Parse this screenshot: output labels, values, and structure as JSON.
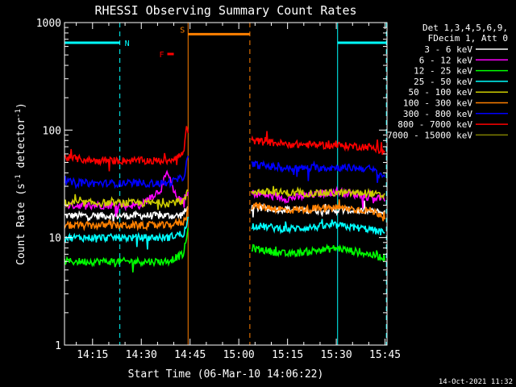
{
  "chart_data": {
    "type": "line",
    "title": "RHESSI Observing Summary Count Rates",
    "xlabel": "Start Time (06-Mar-10 14:06:22)",
    "ylabel": "Count Rate (s-1 detector-1)",
    "ylabel_parts": {
      "base": "Count Rate (s",
      "sup1": "-1",
      "mid": " detector",
      "sup2": "-1",
      "end": ")"
    },
    "x_units": "minutes after 14:00 UT",
    "xlim": [
      6.37,
      105.6
    ],
    "ylim": [
      1,
      1000
    ],
    "y_scale": "log",
    "x_ticks": [
      {
        "v": 15,
        "label": "14:15"
      },
      {
        "v": 30,
        "label": "14:30"
      },
      {
        "v": 45,
        "label": "14:45"
      },
      {
        "v": 60,
        "label": "15:00"
      },
      {
        "v": 75,
        "label": "15:15"
      },
      {
        "v": 90,
        "label": "15:30"
      },
      {
        "v": 105,
        "label": "15:45"
      }
    ],
    "y_ticks": [
      {
        "v": 1,
        "label": "1"
      },
      {
        "v": 10,
        "label": "10"
      },
      {
        "v": 100,
        "label": "100"
      },
      {
        "v": 1000,
        "label": "1000"
      }
    ],
    "legend_placement": "outside-right",
    "legend_header": [
      "Det 1,3,4,5,6,9,",
      "FDecim 1, Att 0"
    ],
    "series": [
      {
        "name": "3 - 6 keV",
        "color": "#ffffff",
        "x": [
          6.4,
          20,
          38,
          42,
          44,
          44.4,
          64,
          80,
          95,
          105
        ],
        "y": [
          16,
          16,
          16,
          16,
          18,
          19,
          19,
          18,
          18,
          17
        ]
      },
      {
        "name": "6 - 12 keV",
        "color": "#ff00ff",
        "x": [
          6.4,
          30,
          36,
          38,
          40,
          42,
          44,
          44.4,
          64,
          75,
          90,
          100,
          105
        ],
        "y": [
          20,
          20,
          28,
          40,
          26,
          22,
          24,
          26,
          26,
          23,
          27,
          24,
          23
        ]
      },
      {
        "name": "12 - 25 keV",
        "color": "#00ff00",
        "x": [
          6.4,
          38,
          43,
          44,
          44.4,
          64,
          75,
          90,
          100,
          105
        ],
        "y": [
          6,
          6,
          7,
          10,
          12,
          8,
          7,
          8,
          7,
          6.5
        ]
      },
      {
        "name": "25 - 50 keV",
        "color": "#00ffff",
        "x": [
          6.4,
          38,
          43,
          44,
          44.4,
          64,
          75,
          90,
          100,
          105
        ],
        "y": [
          10,
          10,
          11,
          13,
          15,
          13,
          12,
          13,
          12,
          11
        ]
      },
      {
        "name": "50 - 100 keV",
        "color": "#cccc00",
        "x": [
          6.4,
          38,
          43,
          44,
          44.4,
          64,
          75,
          90,
          100,
          105
        ],
        "y": [
          21,
          21,
          22,
          25,
          28,
          27,
          26,
          26,
          26,
          24
        ]
      },
      {
        "name": "100 - 300 keV",
        "color": "#ff8000",
        "x": [
          6.4,
          38,
          43,
          44,
          44.4,
          64,
          75,
          90,
          100,
          105
        ],
        "y": [
          13,
          13,
          14,
          16,
          20,
          20,
          18,
          19,
          18,
          16
        ]
      },
      {
        "name": "300 - 800 keV",
        "color": "#0000ff",
        "x": [
          6.4,
          15,
          38,
          43,
          44,
          44.4,
          64,
          75,
          90,
          100,
          105
        ],
        "y": [
          33,
          32,
          32,
          36,
          50,
          55,
          48,
          44,
          45,
          44,
          37
        ]
      },
      {
        "name": "800 - 7000 keV",
        "color": "#ff0000",
        "x": [
          6.4,
          15,
          38,
          43,
          44,
          44.4,
          64,
          75,
          90,
          100,
          105
        ],
        "y": [
          56,
          52,
          52,
          60,
          110,
          90,
          80,
          74,
          72,
          70,
          62
        ]
      },
      {
        "name": "7000 - 15000 keV",
        "color": "#808000",
        "x": [],
        "y": []
      }
    ],
    "annotations": [
      {
        "label": "N",
        "kind": "night",
        "color": "#00ffff",
        "x0": 6.37,
        "x1": 23.4,
        "y": 650
      },
      {
        "label": "",
        "kind": "night",
        "color": "#00ffff",
        "x0": 90.4,
        "x1": 105.4,
        "y": 650
      },
      {
        "label": "S",
        "kind": "saa",
        "color": "#ff8000",
        "x0": 44.4,
        "x1": 63.4,
        "y": 780
      },
      {
        "label": "F",
        "kind": "flare",
        "color": "#ff0000",
        "x0": 38.0,
        "x1": 40.0,
        "y": 510
      }
    ],
    "vlines": [
      {
        "x": 6.37,
        "color": "#00ffff",
        "style": "solid"
      },
      {
        "x": 23.4,
        "color": "#00ffff",
        "style": "dashed"
      },
      {
        "x": 44.4,
        "color": "#ff8000",
        "style": "solid"
      },
      {
        "x": 63.4,
        "color": "#ff8000",
        "style": "dashed"
      },
      {
        "x": 90.4,
        "color": "#00ffff",
        "style": "solid"
      },
      {
        "x": 105.4,
        "color": "#00ffff",
        "style": "dashed"
      }
    ],
    "gaps": [
      [
        44.5,
        63.9
      ]
    ]
  },
  "footer": {
    "timestamp": "14-Oct-2021 11:32"
  }
}
